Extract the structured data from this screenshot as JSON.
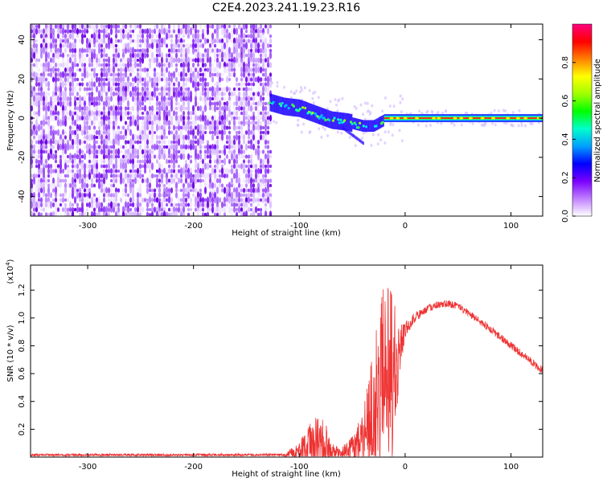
{
  "title": "C2E4.2023.241.19.23.R16",
  "chart_data": [
    {
      "type": "heatmap",
      "xlabel": "Height of straight line (km)",
      "ylabel": "Frequency (Hz)",
      "xlim": [
        -354,
        130
      ],
      "ylim": [
        -50,
        48
      ],
      "xticks": [
        -300,
        -200,
        -100,
        0,
        100
      ],
      "yticks": [
        -40,
        -20,
        0,
        20,
        40
      ],
      "noise_region_x": [
        -354,
        -128
      ],
      "signal_trace": {
        "x": [
          -128,
          -115,
          -100,
          -85,
          -70,
          -55,
          -40,
          -30,
          -20,
          -10,
          0,
          20,
          60,
          100,
          130
        ],
        "frequency": [
          8,
          6,
          5,
          2,
          -1,
          -2,
          -4,
          -4,
          -1,
          0,
          0,
          0,
          0,
          0,
          0
        ]
      },
      "colorbar": {
        "label": "Normalized spectral amplitude",
        "range": [
          0.0,
          1.0
        ],
        "ticks": [
          "0.0",
          "0.2",
          "0.4",
          "0.6",
          "0.8"
        ],
        "colors": [
          "#ffffff",
          "#c080ff",
          "#7a00ff",
          "#0000ff",
          "#00a0ff",
          "#00ffcc",
          "#00ff00",
          "#a0ff00",
          "#ffff00",
          "#ff8000",
          "#ff0000",
          "#ff0080"
        ]
      }
    },
    {
      "type": "line",
      "xlabel": "Height of straight line (km)",
      "ylabel": "SNR (10 * v/v)",
      "multiplier": "(x10",
      "multiplier_exp": "4",
      "multiplier_close": ")",
      "xlim": [
        -354,
        130
      ],
      "ylim": [
        0,
        1.38
      ],
      "xticks": [
        -300,
        -200,
        -100,
        0,
        100
      ],
      "yticks": [
        "0.2",
        "0.4",
        "0.6",
        "0.8",
        "1.0",
        "1.2"
      ],
      "series": [
        {
          "color": "#ee3333",
          "envelope": {
            "x": [
              -354,
              -115,
              -110,
              -100,
              -90,
              -82,
              -75,
              -70,
              -60,
              -50,
              -40,
              -35,
              -30,
              -25,
              -22,
              -20,
              -15,
              -12,
              -10,
              -5,
              0,
              10,
              20,
              30,
              40,
              50,
              60,
              70,
              80,
              90,
              100,
              110,
              120,
              130
            ],
            "mean": [
              0.015,
              0.015,
              0.02,
              0.04,
              0.08,
              0.1,
              0.08,
              0.04,
              0.03,
              0.06,
              0.12,
              0.22,
              0.32,
              0.4,
              0.55,
              0.6,
              0.55,
              0.5,
              0.55,
              0.75,
              0.92,
              1.0,
              1.06,
              1.09,
              1.1,
              1.08,
              1.03,
              0.98,
              0.92,
              0.86,
              0.8,
              0.74,
              0.68,
              0.62
            ],
            "spread": [
              0.01,
              0.01,
              0.03,
              0.08,
              0.16,
              0.2,
              0.18,
              0.06,
              0.04,
              0.1,
              0.2,
              0.32,
              0.5,
              0.6,
              0.65,
              0.7,
              0.75,
              0.7,
              0.6,
              0.2,
              0.08,
              0.04,
              0.03,
              0.03,
              0.03,
              0.03,
              0.03,
              0.03,
              0.03,
              0.03,
              0.03,
              0.03,
              0.03,
              0.03
            ]
          }
        }
      ]
    }
  ]
}
